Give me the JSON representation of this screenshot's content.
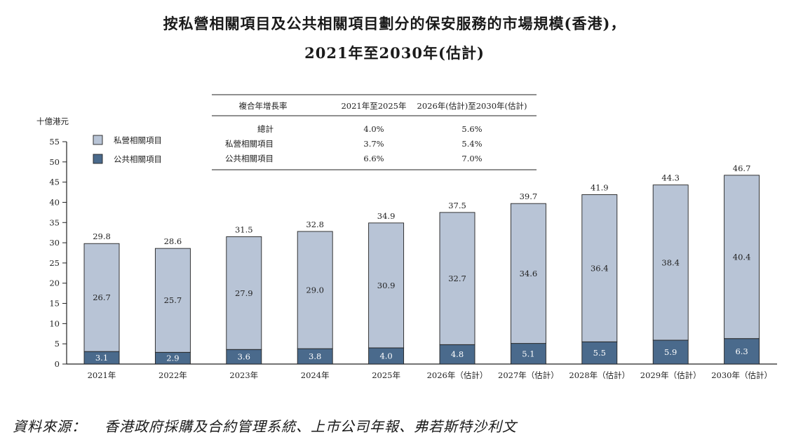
{
  "title_line1": "按私營相關項目及公共相關項目劃分的保安服務的市場規模(香港)，",
  "title_line2": "2021年至2030年(估計)",
  "source_label": "資料來源：",
  "source_text": "香港政府採購及合約管理系統、上市公司年報、弗若斯特沙利文",
  "cagr_table": {
    "header": [
      "複合年增長率",
      "2021年至2025年",
      "2026年(估計)至2030年(估計)"
    ],
    "rows": [
      {
        "label": "總計",
        "v1": "4.0%",
        "v2": "5.6%"
      },
      {
        "label": "私營相關項目",
        "v1": "3.7%",
        "v2": "5.4%"
      },
      {
        "label": "公共相關項目",
        "v1": "6.6%",
        "v2": "7.0%"
      }
    ]
  },
  "chart_data": {
    "type": "bar",
    "stacked": true,
    "ylabel": "十億港元",
    "ylim": [
      0,
      55
    ],
    "yticks": [
      0,
      5,
      10,
      15,
      20,
      25,
      30,
      35,
      40,
      45,
      50,
      55
    ],
    "grid": false,
    "legend_position": "top-left",
    "categories": [
      "2021年",
      "2022年",
      "2023年",
      "2024年",
      "2025年",
      "2026年（估計）",
      "2027年（估計）",
      "2028年（估計）",
      "2029年（估計）",
      "2030年（估計）"
    ],
    "series": [
      {
        "name": "公共相關項目",
        "color": "#4a6a8c",
        "values": [
          3.1,
          2.9,
          3.6,
          3.8,
          4.0,
          4.8,
          5.1,
          5.5,
          5.9,
          6.3
        ]
      },
      {
        "name": "私營相關項目",
        "color": "#b8c4d6",
        "values": [
          26.7,
          25.7,
          27.9,
          29.0,
          30.9,
          32.7,
          34.6,
          36.4,
          38.4,
          40.4
        ]
      }
    ],
    "totals": [
      29.8,
      28.6,
      31.5,
      32.8,
      34.9,
      37.5,
      39.7,
      41.9,
      44.3,
      46.7
    ]
  }
}
